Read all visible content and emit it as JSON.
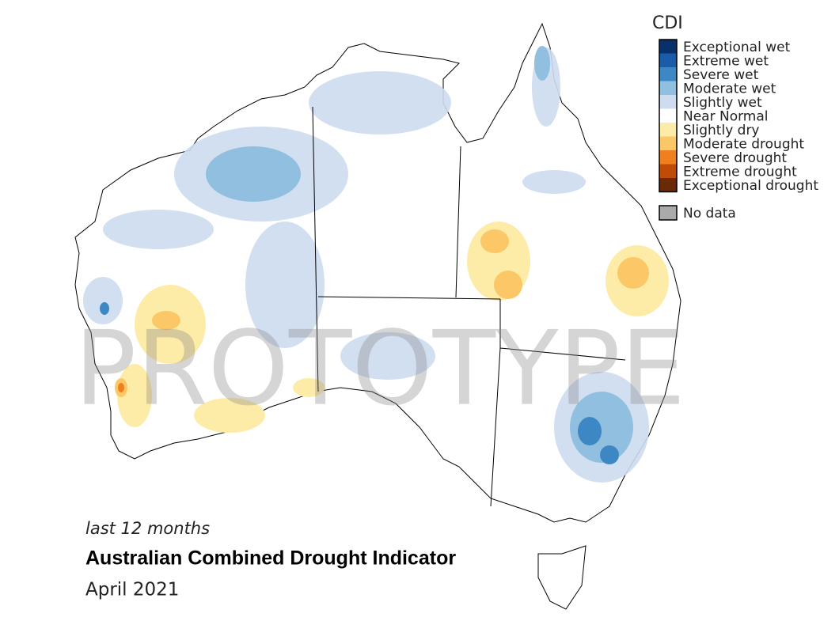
{
  "map": {
    "watermark": "PROTOTYPE",
    "legend": {
      "title": "CDI",
      "items": [
        {
          "name": "Exceptional wet",
          "color": "#08306b"
        },
        {
          "name": "Extreme wet",
          "color": "#1a5ca8"
        },
        {
          "name": "Severe wet",
          "color": "#3d88c4"
        },
        {
          "name": "Moderate wet",
          "color": "#91bfe0"
        },
        {
          "name": "Slightly wet",
          "color": "#cddcef"
        },
        {
          "name": "Near Normal",
          "color": "#ffffff"
        },
        {
          "name": "Slightly dry",
          "color": "#fdeca8"
        },
        {
          "name": "Moderate drought",
          "color": "#fbc767"
        },
        {
          "name": "Severe drought",
          "color": "#f0801e"
        },
        {
          "name": "Extreme drought",
          "color": "#bf4b07"
        },
        {
          "name": "Exceptional drought",
          "color": "#6b2a06"
        }
      ],
      "no_data": {
        "name": "No data",
        "color": "#aaaaaa"
      }
    },
    "period": "last 12 months",
    "title": "Australian Combined Drought Indicator",
    "date": "April 2021"
  }
}
